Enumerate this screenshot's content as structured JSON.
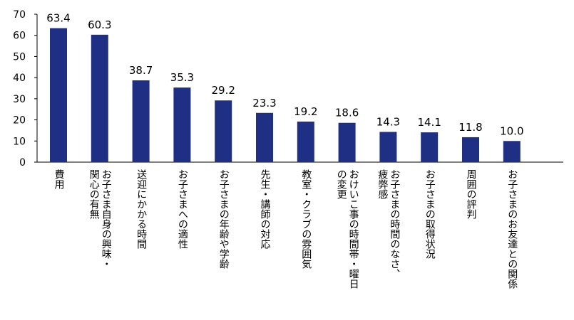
{
  "chart_data": {
    "type": "bar",
    "categories": [
      [
        "費用"
      ],
      [
        "お子さま自身の興味・",
        "関心の有無"
      ],
      [
        "送迎にかかる時間"
      ],
      [
        "お子さまへの適性"
      ],
      [
        "お子さまの年齢や学齢"
      ],
      [
        "先生・講師の対応"
      ],
      [
        "教室・クラブの雰囲気"
      ],
      [
        "おけいこ事の時間帯・曜日",
        "の変更"
      ],
      [
        "お子さまの時間のなさ、",
        "疲弊感"
      ],
      [
        "お子さまの取得状況"
      ],
      [
        "周囲の評判"
      ],
      [
        "お子さまのお友達との関係"
      ]
    ],
    "values": [
      63.4,
      60.3,
      38.7,
      35.3,
      29.2,
      23.3,
      19.2,
      18.6,
      14.3,
      14.1,
      11.8,
      10.0
    ],
    "value_labels": [
      "63.4",
      "60.3",
      "38.7",
      "35.3",
      "29.2",
      "23.3",
      "19.2",
      "18.6",
      "14.3",
      "14.1",
      "11.8",
      "10.0"
    ],
    "yticks": [
      "0",
      "10",
      "20",
      "30",
      "40",
      "50",
      "60",
      "70"
    ],
    "ylim": [
      0,
      70
    ],
    "bar_color": "#1f3084",
    "grid": false,
    "title": "",
    "xlabel": "",
    "ylabel": ""
  }
}
